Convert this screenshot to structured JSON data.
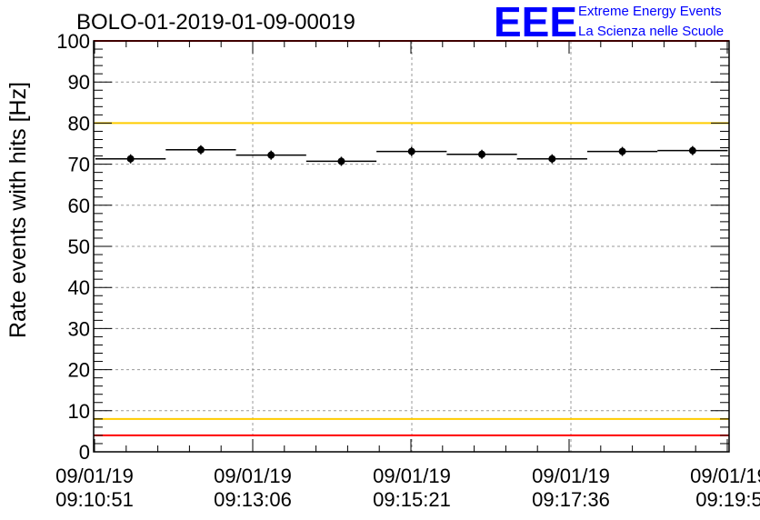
{
  "chart_data": {
    "type": "scatter",
    "title": "BOLO-01-2019-01-09-00019",
    "ylabel": "Rate events with hits [Hz]",
    "xlabel": "",
    "ylim": [
      0,
      100
    ],
    "yticks": [
      0,
      10,
      20,
      30,
      40,
      50,
      60,
      70,
      80,
      90,
      100
    ],
    "xtick_labels": [
      [
        "09/01/19",
        "09:10:51"
      ],
      [
        "09/01/19",
        "09:13:06"
      ],
      [
        "09/01/19",
        "09:15:21"
      ],
      [
        "09/01/19",
        "09:17:36"
      ],
      [
        "09/01/19",
        "09:19:5"
      ]
    ],
    "grid": true,
    "series": [
      {
        "values": [
          71.3,
          73.5,
          72.2,
          70.7,
          73.1,
          72.4,
          71.3,
          73.1,
          73.3
        ]
      }
    ],
    "reference_lines": [
      {
        "y": 80,
        "color": "#ffcc00"
      },
      {
        "y": 8,
        "color": "#ffcc00"
      },
      {
        "y": 100,
        "color": "#ff0000"
      },
      {
        "y": 4,
        "color": "#ff0000"
      }
    ]
  },
  "logo": {
    "mark": "EEE",
    "line1": "Extreme Energy Events",
    "line2": "La Scienza nelle Scuole",
    "color": "#0000ff"
  }
}
